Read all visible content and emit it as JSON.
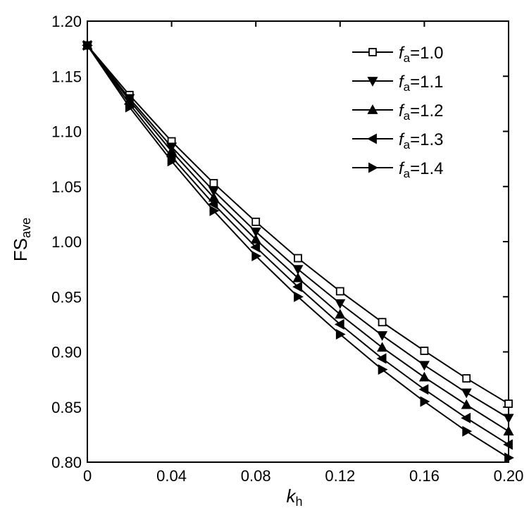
{
  "chart_data": {
    "type": "line",
    "xlabel": {
      "main": "k",
      "sub": "h"
    },
    "ylabel": {
      "main": "FS",
      "sub": "ave"
    },
    "xlim": [
      0,
      0.2
    ],
    "ylim": [
      0.8,
      1.2
    ],
    "x_ticks": [
      0,
      0.04,
      0.08,
      0.12,
      0.16,
      0.2
    ],
    "x_tick_labels": [
      "0",
      "0.04",
      "0.08",
      "0.12",
      "0.16",
      "0.20"
    ],
    "y_ticks": [
      0.8,
      0.85,
      0.9,
      0.95,
      1.0,
      1.05,
      1.1,
      1.15,
      1.2
    ],
    "y_tick_labels": [
      "0.80",
      "0.85",
      "0.90",
      "0.95",
      "1.00",
      "1.05",
      "1.10",
      "1.15",
      "1.20"
    ],
    "grid": false,
    "legend_position": "top-right",
    "x": [
      0,
      0.02,
      0.04,
      0.06,
      0.08,
      0.1,
      0.12,
      0.14,
      0.16,
      0.18,
      0.2
    ],
    "series": [
      {
        "name": "fa=1.0",
        "label_italic": "f",
        "label_sub": "a",
        "label_rest": "=1.0",
        "marker": "square",
        "values": [
          1.178,
          1.133,
          1.091,
          1.053,
          1.018,
          0.985,
          0.955,
          0.927,
          0.901,
          0.876,
          0.853
        ]
      },
      {
        "name": "fa=1.1",
        "label_italic": "f",
        "label_sub": "a",
        "label_rest": "=1.1",
        "marker": "triangle-down",
        "values": [
          1.178,
          1.13,
          1.086,
          1.046,
          1.009,
          0.975,
          0.944,
          0.915,
          0.888,
          0.863,
          0.84
        ]
      },
      {
        "name": "fa=1.2",
        "label_italic": "f",
        "label_sub": "a",
        "label_rest": "=1.2",
        "marker": "triangle-up",
        "values": [
          1.178,
          1.128,
          1.082,
          1.04,
          1.002,
          0.967,
          0.934,
          0.904,
          0.877,
          0.852,
          0.828
        ]
      },
      {
        "name": "fa=1.3",
        "label_italic": "f",
        "label_sub": "a",
        "label_rest": "=1.3",
        "marker": "triangle-left",
        "values": [
          1.178,
          1.125,
          1.077,
          1.034,
          0.995,
          0.959,
          0.925,
          0.894,
          0.866,
          0.84,
          0.816
        ]
      },
      {
        "name": "fa=1.4",
        "label_italic": "f",
        "label_sub": "a",
        "label_rest": "=1.4",
        "marker": "triangle-right",
        "values": [
          1.178,
          1.122,
          1.073,
          1.028,
          0.987,
          0.95,
          0.916,
          0.884,
          0.855,
          0.828,
          0.804
        ]
      }
    ]
  }
}
